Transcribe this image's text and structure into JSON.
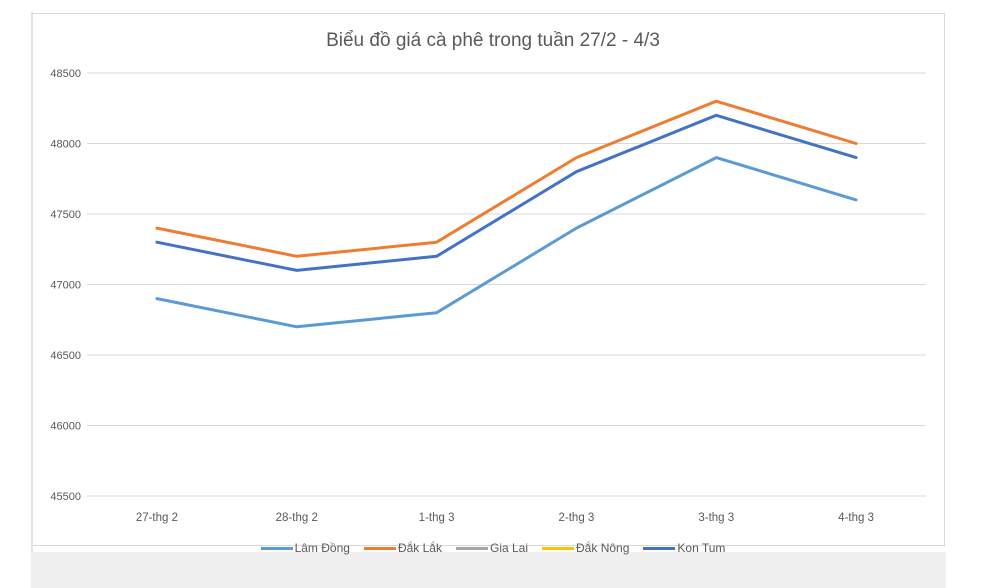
{
  "chart_data": {
    "type": "line",
    "title": "Biểu đồ giá cà phê trong tuần 27/2 - 4/3",
    "xlabel": "",
    "ylabel": "",
    "categories": [
      "27-thg 2",
      "28-thg 2",
      "1-thg 3",
      "2-thg 3",
      "3-thg 3",
      "4-thg 3"
    ],
    "ylim": [
      45500,
      48500
    ],
    "yticks": [
      45500,
      46000,
      46500,
      47000,
      47500,
      48000,
      48500
    ],
    "grid": true,
    "legend_position": "bottom",
    "series": [
      {
        "name": "Lâm Đồng",
        "color": "#5b9bd5",
        "values": [
          46900,
          46700,
          46800,
          47400,
          47900,
          47600
        ]
      },
      {
        "name": "Đắk Lắk",
        "color": "#ed7d31",
        "values": [
          47400,
          47200,
          47300,
          47900,
          48300,
          48000
        ]
      },
      {
        "name": "Gia Lai",
        "color": "#a5a5a5",
        "values": []
      },
      {
        "name": "Đắk Nông",
        "color": "#ffc000",
        "values": []
      },
      {
        "name": "Kon Tum",
        "color": "#4472c4",
        "values": [
          47300,
          47100,
          47200,
          47800,
          48200,
          47900
        ]
      }
    ]
  }
}
